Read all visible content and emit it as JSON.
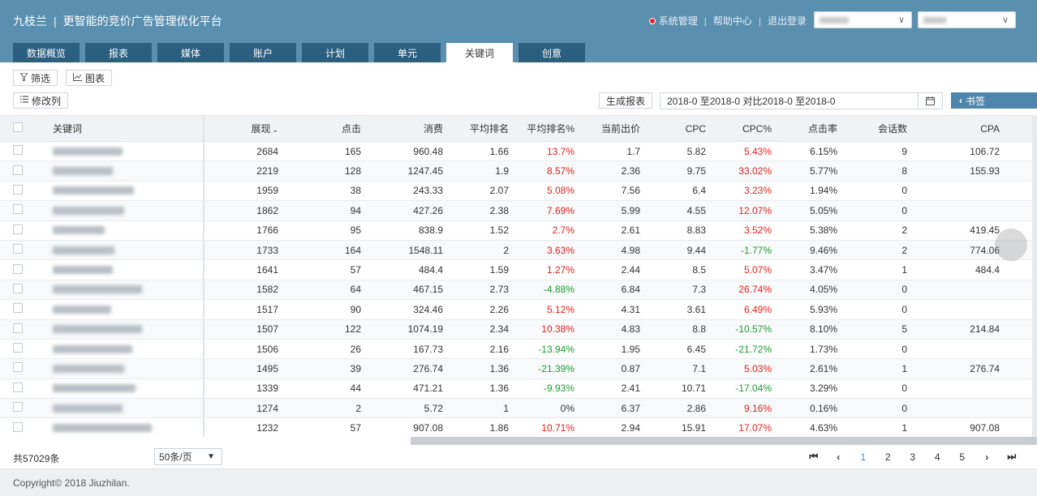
{
  "header": {
    "brand": "九枝兰",
    "separator": "|",
    "slogan": "更智能的竞价广告管理优化平台",
    "nav": [
      "系统管理",
      "帮助中心",
      "退出登录"
    ],
    "nav_divider": "|",
    "select_chevron": "∨"
  },
  "tabs": [
    "数据概览",
    "报表",
    "媒体",
    "账户",
    "计划",
    "单元",
    "关键词",
    "创意"
  ],
  "active_tab": 6,
  "toolbar": {
    "filter_label": "筛选",
    "chart_label": "图表",
    "columns_label": "修改列",
    "generate_label": "生成报表",
    "date_range": "2018-0     至2018-0     对比2018-0     至2018-0",
    "bookmark_label": "书签"
  },
  "table": {
    "headers": {
      "keyword": "关键词",
      "impressions": "展现",
      "sort_icon": "⌄",
      "clicks": "点击",
      "cost": "消费",
      "avg_rank": "平均排名",
      "avg_rank_pct": "平均排名%",
      "bid": "当前出价",
      "cpc": "CPC",
      "cpc_pct": "CPC%",
      "ctr": "点击率",
      "sessions": "会话数",
      "cpa": "CPA"
    },
    "rows": [
      {
        "impressions": "2684",
        "clicks": "165",
        "cost": "960.48",
        "avg_rank": "1.66",
        "avg_rank_pct": "13.7%",
        "bid": "1.7",
        "cpc": "5.82",
        "cpc_pct": "5.43%",
        "ctr": "6.15%",
        "sessions": "9",
        "cpa": "106.72"
      },
      {
        "impressions": "2219",
        "clicks": "128",
        "cost": "1247.45",
        "avg_rank": "1.9",
        "avg_rank_pct": "8.57%",
        "bid": "2.36",
        "cpc": "9.75",
        "cpc_pct": "33.02%",
        "ctr": "5.77%",
        "sessions": "8",
        "cpa": "155.93"
      },
      {
        "impressions": "1959",
        "clicks": "38",
        "cost": "243.33",
        "avg_rank": "2.07",
        "avg_rank_pct": "5.08%",
        "bid": "7.56",
        "cpc": "6.4",
        "cpc_pct": "3.23%",
        "ctr": "1.94%",
        "sessions": "0",
        "cpa": ""
      },
      {
        "impressions": "1862",
        "clicks": "94",
        "cost": "427.26",
        "avg_rank": "2.38",
        "avg_rank_pct": "7.69%",
        "bid": "5.99",
        "cpc": "4.55",
        "cpc_pct": "12.07%",
        "ctr": "5.05%",
        "sessions": "0",
        "cpa": ""
      },
      {
        "impressions": "1766",
        "clicks": "95",
        "cost": "838.9",
        "avg_rank": "1.52",
        "avg_rank_pct": "2.7%",
        "bid": "2.61",
        "cpc": "8.83",
        "cpc_pct": "3.52%",
        "ctr": "5.38%",
        "sessions": "2",
        "cpa": "419.45"
      },
      {
        "impressions": "1733",
        "clicks": "164",
        "cost": "1548.11",
        "avg_rank": "2",
        "avg_rank_pct": "3.63%",
        "bid": "4.98",
        "cpc": "9.44",
        "cpc_pct": "-1.77%",
        "ctr": "9.46%",
        "sessions": "2",
        "cpa": "774.06"
      },
      {
        "impressions": "1641",
        "clicks": "57",
        "cost": "484.4",
        "avg_rank": "1.59",
        "avg_rank_pct": "1.27%",
        "bid": "2.44",
        "cpc": "8.5",
        "cpc_pct": "5.07%",
        "ctr": "3.47%",
        "sessions": "1",
        "cpa": "484.4"
      },
      {
        "impressions": "1582",
        "clicks": "64",
        "cost": "467.15",
        "avg_rank": "2.73",
        "avg_rank_pct": "-4.88%",
        "bid": "6.84",
        "cpc": "7.3",
        "cpc_pct": "26.74%",
        "ctr": "4.05%",
        "sessions": "0",
        "cpa": ""
      },
      {
        "impressions": "1517",
        "clicks": "90",
        "cost": "324.46",
        "avg_rank": "2.26",
        "avg_rank_pct": "5.12%",
        "bid": "4.31",
        "cpc": "3.61",
        "cpc_pct": "6.49%",
        "ctr": "5.93%",
        "sessions": "0",
        "cpa": ""
      },
      {
        "impressions": "1507",
        "clicks": "122",
        "cost": "1074.19",
        "avg_rank": "2.34",
        "avg_rank_pct": "10.38%",
        "bid": "4.83",
        "cpc": "8.8",
        "cpc_pct": "-10.57%",
        "ctr": "8.10%",
        "sessions": "5",
        "cpa": "214.84"
      },
      {
        "impressions": "1506",
        "clicks": "26",
        "cost": "167.73",
        "avg_rank": "2.16",
        "avg_rank_pct": "-13.94%",
        "bid": "1.95",
        "cpc": "6.45",
        "cpc_pct": "-21.72%",
        "ctr": "1.73%",
        "sessions": "0",
        "cpa": ""
      },
      {
        "impressions": "1495",
        "clicks": "39",
        "cost": "276.74",
        "avg_rank": "1.36",
        "avg_rank_pct": "-21.39%",
        "bid": "0.87",
        "cpc": "7.1",
        "cpc_pct": "5.03%",
        "ctr": "2.61%",
        "sessions": "1",
        "cpa": "276.74"
      },
      {
        "impressions": "1339",
        "clicks": "44",
        "cost": "471.21",
        "avg_rank": "1.36",
        "avg_rank_pct": "-9.93%",
        "bid": "2.41",
        "cpc": "10.71",
        "cpc_pct": "-17.04%",
        "ctr": "3.29%",
        "sessions": "0",
        "cpa": ""
      },
      {
        "impressions": "1274",
        "clicks": "2",
        "cost": "5.72",
        "avg_rank": "1",
        "avg_rank_pct": "0%",
        "bid": "6.37",
        "cpc": "2.86",
        "cpc_pct": "9.16%",
        "ctr": "0.16%",
        "sessions": "0",
        "cpa": ""
      },
      {
        "impressions": "1232",
        "clicks": "57",
        "cost": "907.08",
        "avg_rank": "1.86",
        "avg_rank_pct": "10.71%",
        "bid": "2.94",
        "cpc": "15.91",
        "cpc_pct": "17.07%",
        "ctr": "4.63%",
        "sessions": "1",
        "cpa": "907.08"
      }
    ]
  },
  "pagination": {
    "total": "共57029条",
    "page_size": "50条/页",
    "page_size_chevron": "▼",
    "first": "⏮",
    "prev": "‹",
    "pages": [
      "1",
      "2",
      "3",
      "4",
      "5"
    ],
    "current": "1",
    "next": "›",
    "last": "⏭"
  },
  "footer": {
    "copyright": "Copyright© 2018 Jiuzhilan."
  },
  "colors": {
    "header_bg": "#5a8fb0",
    "tab_bg": "#2a5f80",
    "positive": "#e2221b",
    "negative": "#1e9b30",
    "accent": "#4f86ad"
  }
}
